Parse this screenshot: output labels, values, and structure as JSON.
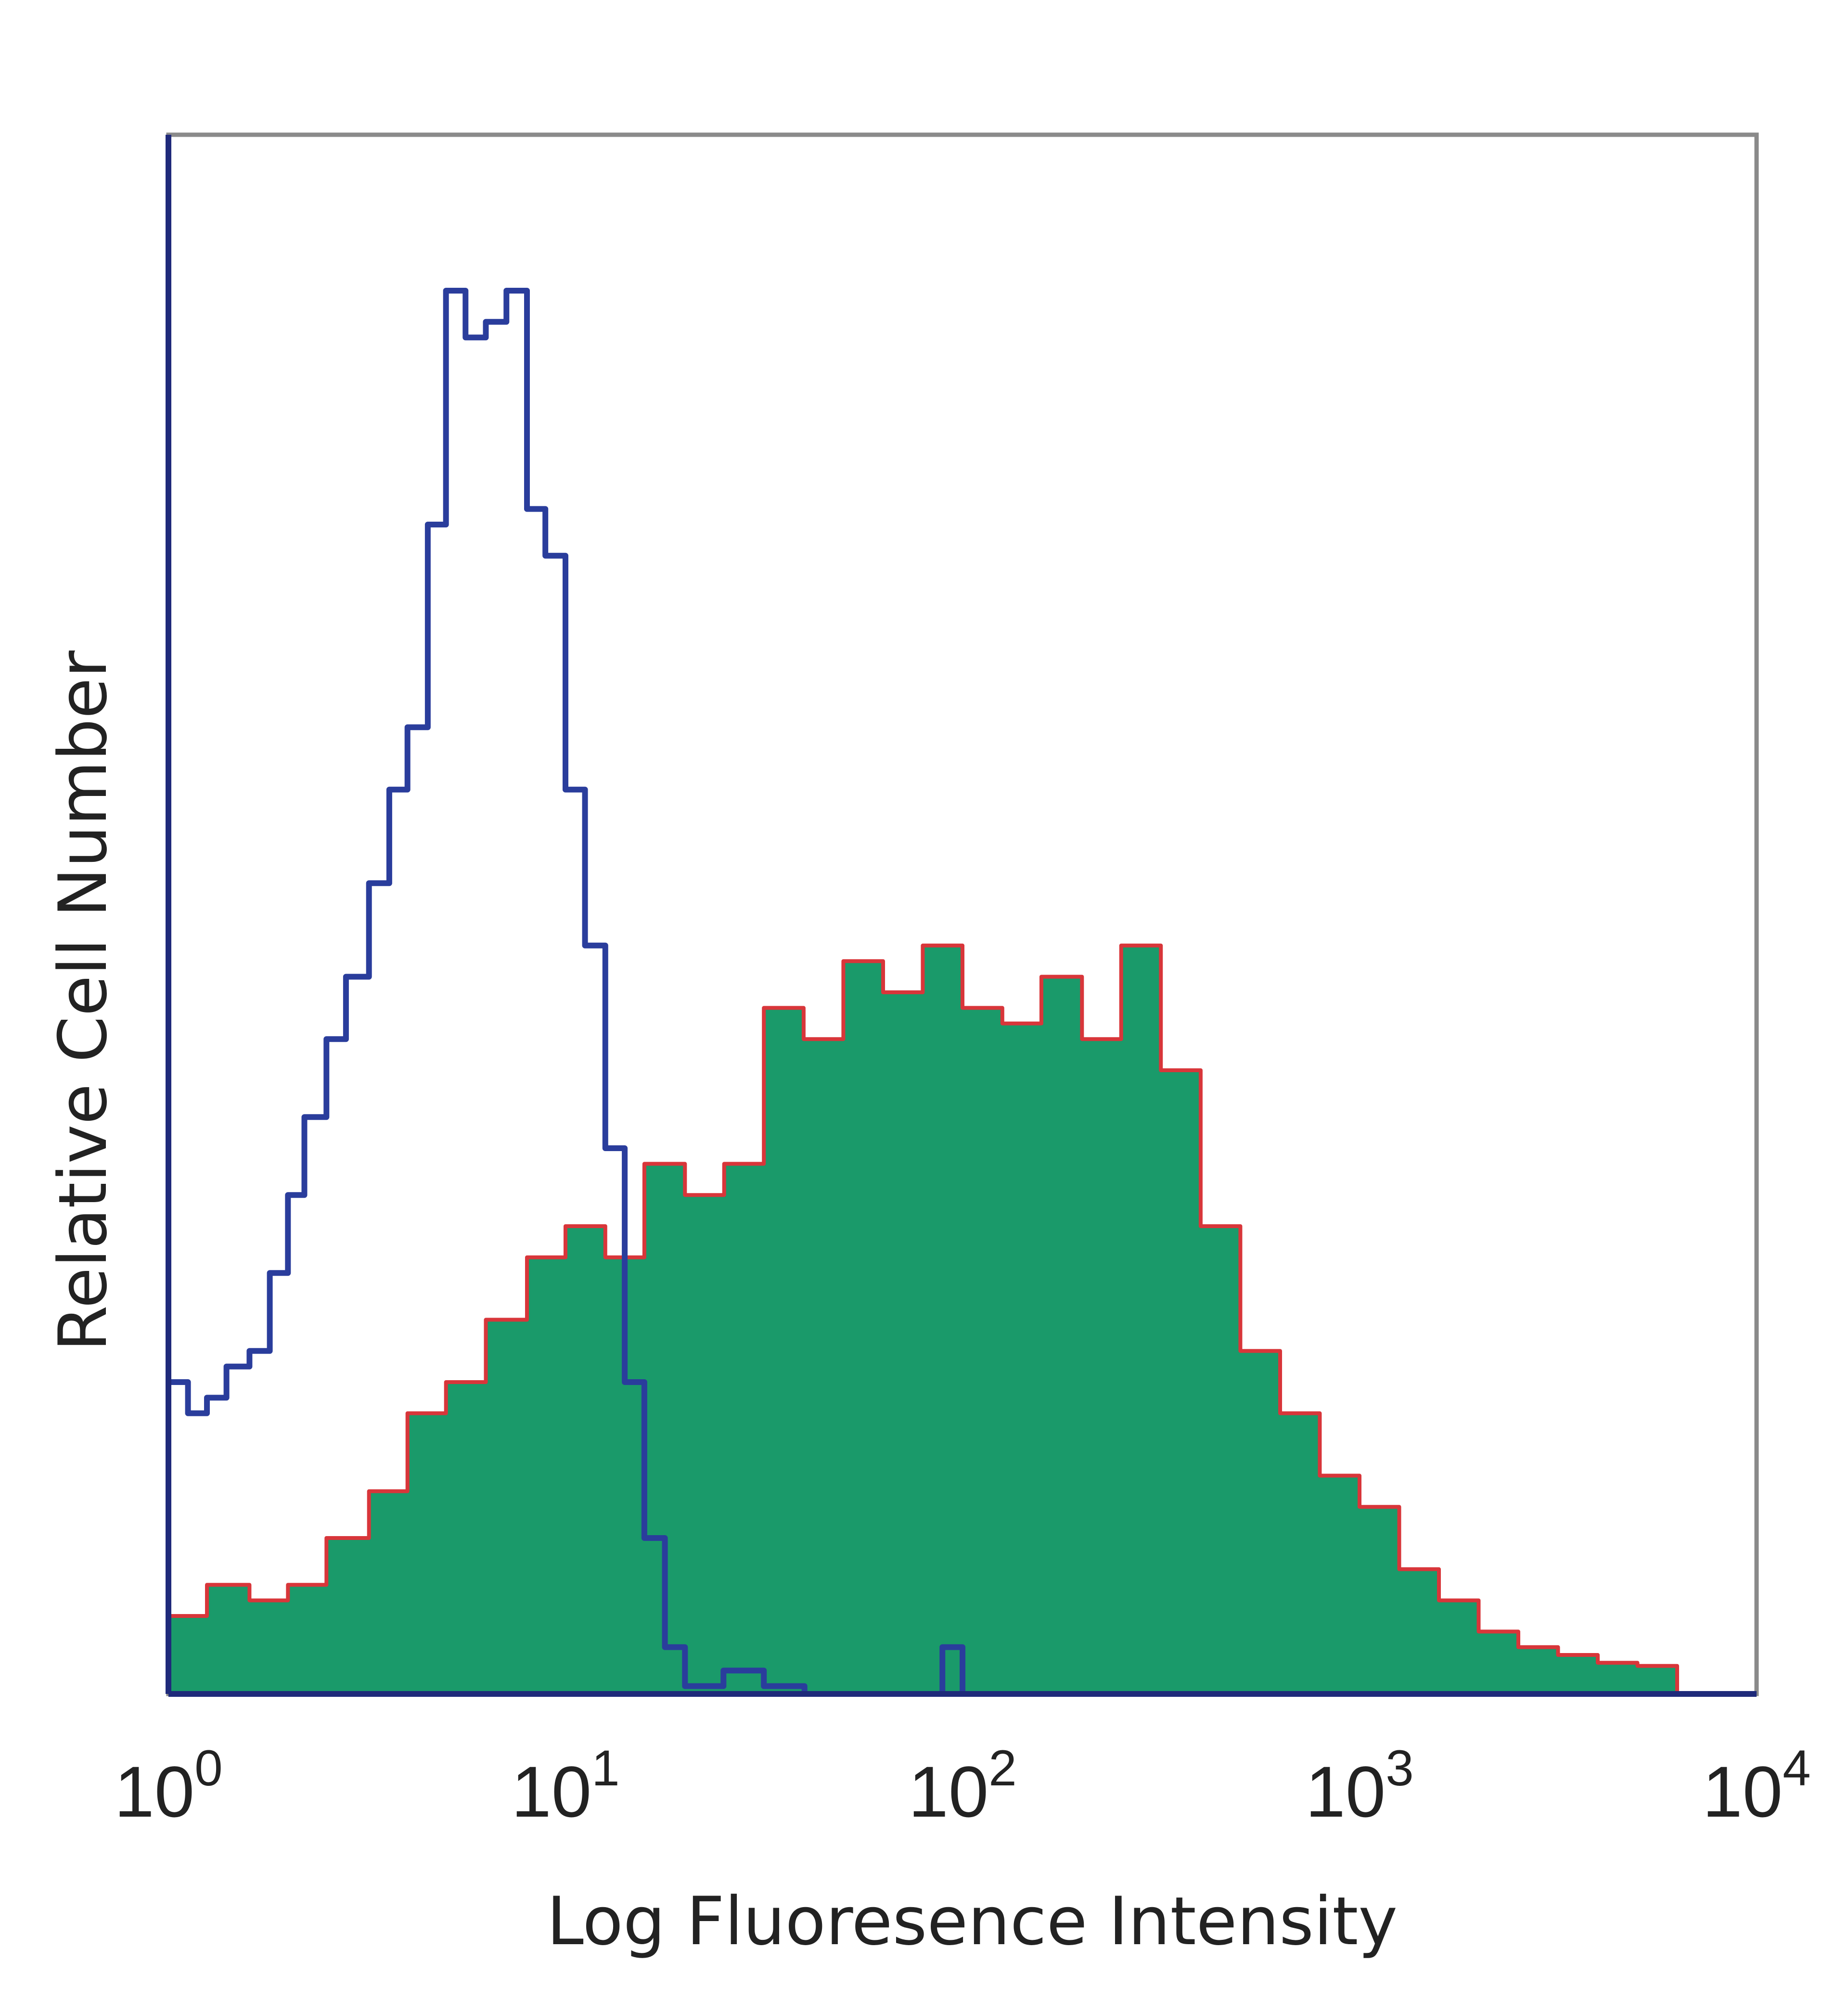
{
  "chart_data": {
    "type": "area",
    "title": "",
    "xlabel": "Log Fluoresence Intensity",
    "ylabel": "Relative Cell Number",
    "x_scale": "log",
    "xlim": [
      1,
      10000
    ],
    "ylim": [
      0,
      100
    ],
    "grid": false,
    "legend": "none",
    "x_ticks": [
      {
        "base": "10",
        "exp": "0"
      },
      {
        "base": "10",
        "exp": "1"
      },
      {
        "base": "10",
        "exp": "2"
      },
      {
        "base": "10",
        "exp": "3"
      },
      {
        "base": "10",
        "exp": "4"
      }
    ],
    "series": [
      {
        "style": "filled",
        "fill_color": "#1a9a6a",
        "line_color": "#d8363a",
        "x": [
          1.0,
          1.25,
          1.6,
          2.0,
          2.5,
          3.2,
          4.0,
          5.0,
          6.3,
          8.0,
          10.0,
          12.6,
          15.8,
          20.0,
          25.1,
          31.6,
          39.8,
          50.1,
          63.1,
          79.4,
          100,
          126,
          158,
          200,
          251,
          316,
          398,
          501,
          631,
          794,
          1000,
          1259,
          1585,
          1995,
          2512,
          3162,
          3981,
          5012,
          6310
        ],
        "y": [
          5,
          7,
          6,
          7,
          10,
          13,
          18,
          20,
          24,
          28,
          30,
          28,
          34,
          32,
          34,
          44,
          42,
          47,
          45,
          48,
          44,
          43,
          46,
          42,
          48,
          40,
          30,
          22,
          18,
          14,
          12,
          8,
          6,
          4,
          3,
          2.5,
          2,
          1.8,
          1.5
        ]
      },
      {
        "style": "outline",
        "line_color": "#2a3d9c",
        "x": [
          1.0,
          1.12,
          1.25,
          1.4,
          1.6,
          1.8,
          2.0,
          2.2,
          2.5,
          2.8,
          3.2,
          3.6,
          4.0,
          4.5,
          5.0,
          5.6,
          6.3,
          7.1,
          8.0,
          8.9,
          10.0,
          11.2,
          12.6,
          14.1,
          15.8,
          17.8,
          20.0,
          25.0,
          31.6,
          40,
          50,
          63,
          79.4,
          89,
          100,
          110,
          126
        ],
        "y": [
          20,
          18,
          19,
          21,
          22,
          27,
          32,
          37,
          42,
          46,
          52,
          58,
          62,
          75,
          90,
          87,
          88,
          90,
          76,
          73,
          58,
          48,
          35,
          20,
          10,
          3,
          0.5,
          1.5,
          0.5,
          0,
          0,
          0,
          0,
          3,
          0,
          0,
          0
        ]
      }
    ]
  }
}
